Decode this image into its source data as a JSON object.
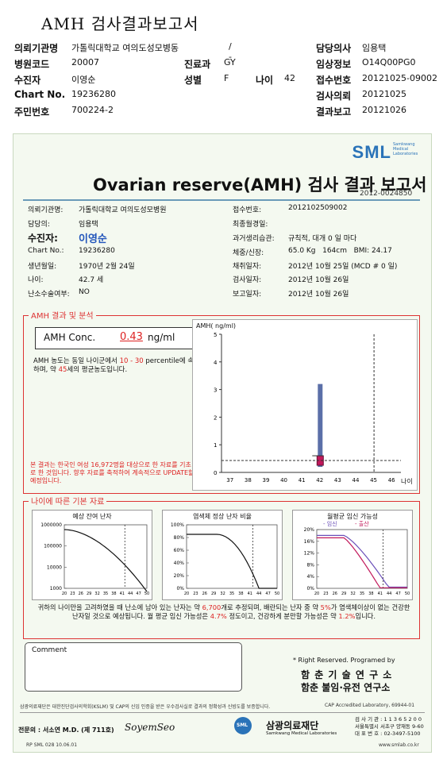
{
  "header": {
    "title": "AMH 검사결과보고서",
    "rows": [
      {
        "l1": "의뢰기관명",
        "v1": "가톨릭대학교 여의도성모병동",
        "l2": "",
        "v2": "/ -",
        "l3": "담당의사",
        "v3": "임용택"
      },
      {
        "l1": "병원코드",
        "v1": "20007",
        "l2": "진료과",
        "v2": "GY",
        "l3": "임상정보",
        "v3": "O14Q00PG0"
      },
      {
        "l1": "수진자",
        "v1": "이영순",
        "l2": "성별",
        "v2": "F",
        "l2b": "나이",
        "v2b": "42",
        "l3": "접수번호",
        "v3": "20121025-09002"
      },
      {
        "l1": "Chart No.",
        "v1": "19236280",
        "l2": "",
        "v2": "",
        "l3": "검사의뢰",
        "v3": "20121025"
      },
      {
        "l1": "주민번호",
        "v1": "700224-2",
        "l2": "",
        "v2": "",
        "l3": "결과보고",
        "v3": "20121026"
      }
    ]
  },
  "report": {
    "logo": "SML",
    "logo_sub": "Samkwang Medical Laboratories",
    "title": "Ovarian reserve(AMH) 검사 결과 보고서",
    "report_no": "2012-0024850",
    "left": [
      {
        "label": "의뢰기관명:",
        "value": "가톨릭대학교 여의도성모병원"
      },
      {
        "label": "담당의:",
        "value": "임용택"
      },
      {
        "label": "수진자:",
        "value": "이영순"
      },
      {
        "label": "Chart No.:",
        "value": "19236280"
      },
      {
        "label": "생년월일:",
        "value": "1970년 2월 24일"
      },
      {
        "label": "나이:",
        "value": "42.7 세"
      },
      {
        "label": "난소수술여부:",
        "value": "NO"
      }
    ],
    "right": [
      {
        "label": "접수번호:",
        "value": "2012102509002"
      },
      {
        "label": "최종월경일:",
        "value": ""
      },
      {
        "label": "과거생리습관:",
        "value": "규칙적, 대개   0 일 마다"
      },
      {
        "label": "체중/신장:",
        "value": "65.0 Kg   164cm   BMI: 24.17"
      },
      {
        "label": "채취일자:",
        "value": "2012년 10월 25일 (MCD # 0 일)"
      },
      {
        "label": "검사일자:",
        "value": "2012년 10월 26일"
      },
      {
        "label": "보고일자:",
        "value": "2012년 10월 26일"
      }
    ],
    "amh_section": {
      "heading": "AMH 결과 및 분석",
      "conc_label": "AMH Conc.",
      "conc_value": "0.43",
      "conc_unit": "ng/ml",
      "desc_a": "AMH 농도는 동일 나이군에서",
      "desc_range": "10 - 30",
      "desc_b": "percentile에 속하며, 약",
      "desc_age": "45",
      "desc_c": "세의 평균농도입니다.",
      "note": "본 결과는 한국인 여성 16,972명을 대상으로 한 자료를 기초로 한 것입니다. 향후 자료를 축적하여 계속적으로 UPDATE할 예정입니다.",
      "chart_ylabel": "AMH( ng/ml)",
      "chart_xlabel": "나이"
    },
    "age_section": {
      "heading": "나이에 따른 기본 자료",
      "chart1_title": "예상 잔여 난자",
      "chart2_title": "염색체 정상 난자 비율",
      "chart3_title": "월평균 임신 가능성",
      "chart3_legend_a": "- 임신",
      "chart3_legend_b": "- 출산",
      "summary_1": "귀하의 나이만을 고려하였을 때 난소에 남아 있는 난자는 약",
      "summary_eggs": "6,700",
      "summary_2": "개로 추정되며, 배란되는 난자 중 약",
      "summary_pct": "5%",
      "summary_3": "가 염색체이상이 없는 건강한 난자일 것으로 예상됩니다. 월 평균 임신 가능성은",
      "summary_preg": "4.7%",
      "summary_4": "정도이고, 건강하게 분만할 가능성은 약",
      "summary_birth": "1.2%",
      "summary_5": "입니다."
    },
    "comment_label": "Comment",
    "rights": "* Right Reserved. Programed by",
    "lab1": "함 춘  기 술  연 구 소",
    "lab2": "함춘 불임·유전 연구소",
    "cert_line": "삼광의료재단은 대한진단검사의학회(KSLM) 및 CAP의 신임 인증을 받은 우수검사실로 결과의 정확성과 신빙도를 보증합니다.",
    "cap": "CAP  Accredited  Laboratory,  69944-01",
    "specialist": "전문의 : 서소연 M.D. (제 711호)",
    "signature": "SoyemSeo",
    "foundation": "삼광의료재단",
    "foundation_sub": "Samkwang Medical Laboratories",
    "contact": "검 사 기 관 : 1 1 3 6 5 2 0 0\n서울특별시 서초구 양재동 9-60\n대 표 번 호 : 02-3497-5100",
    "form_code": "RP  SML  028  10.06.01",
    "website": "www.smlab.co.kr"
  },
  "chart_data": [
    {
      "type": "bar",
      "title": "",
      "ylabel": "AMH( ng/ml)",
      "xlabel": "나이",
      "x": [
        37,
        38,
        39,
        40,
        41,
        42,
        43,
        44,
        45,
        46
      ],
      "ylim": [
        0,
        5
      ],
      "yticks": [
        0,
        1,
        2,
        3,
        4,
        5
      ],
      "range_bar": {
        "x": 42,
        "low": 0.2,
        "high": 3.2
      },
      "patient": {
        "x": 42,
        "value": 0.43
      },
      "reference_line_x": 45,
      "reference_line_y": 0.43
    },
    {
      "type": "line",
      "title": "예상 잔여 난자",
      "x": [
        20,
        23,
        26,
        29,
        32,
        35,
        38,
        41,
        44,
        47,
        50
      ],
      "yticks": [
        "1000000",
        "100000",
        "10000",
        "1000"
      ],
      "marker_x": 42
    },
    {
      "type": "line",
      "title": "염색체 정상 난자 비율",
      "x": [
        20,
        23,
        26,
        29,
        32,
        35,
        38,
        41,
        44,
        47,
        50
      ],
      "yticks": [
        "100%",
        "80%",
        "60%",
        "40%",
        "20%",
        "0%"
      ],
      "marker_x": 42
    },
    {
      "type": "line",
      "title": "월평균 임신 가능성",
      "x": [
        20,
        23,
        26,
        29,
        32,
        35,
        38,
        41,
        44,
        47,
        50
      ],
      "yticks": [
        "20%",
        "16%",
        "12%",
        "8%",
        "4%",
        "0%"
      ],
      "marker_x": 42,
      "series": [
        {
          "name": "임신"
        },
        {
          "name": "출산"
        }
      ]
    }
  ]
}
